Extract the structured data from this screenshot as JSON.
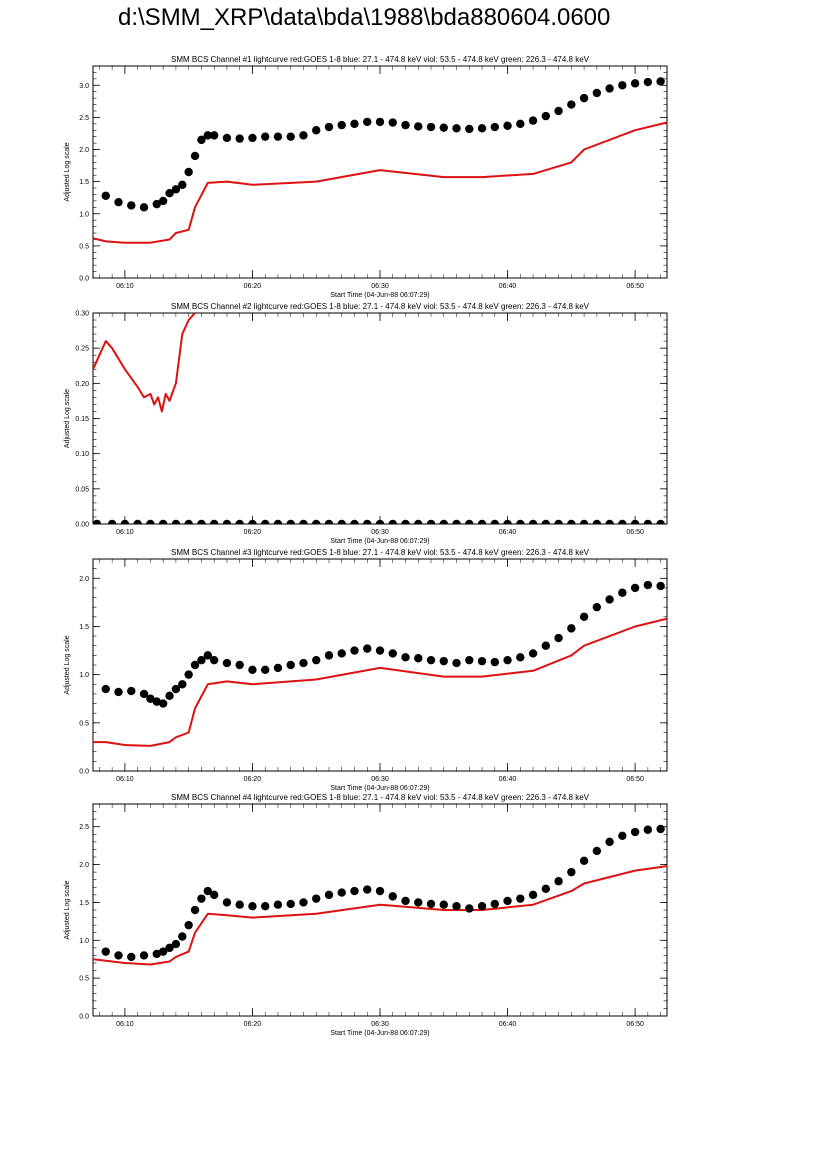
{
  "page_title": "d:\\SMM_XRP\\data\\bda\\1988\\bda880604.0600",
  "colors": {
    "goes": "#dd1111",
    "bcs": "#000000",
    "axes": "#000000",
    "background": "#ffffff"
  },
  "chart_data": [
    {
      "type": "line",
      "title": "SMM BCS Channel #1 lightcurve  red:GOES 1-8  blue: 27.1 - 474.8 keV  viol: 53.5 - 474.8 keV  green: 226.3 - 474.8 keV",
      "ylabel": "Adjusted Log scale",
      "xlabel": "Start Time (04-Jun-88 06:07:29)",
      "xlim": [
        7.5,
        52.5
      ],
      "ylim": [
        0,
        3.3
      ],
      "yticks": [
        0,
        0.5,
        1,
        1.5,
        2,
        2.5,
        3
      ],
      "ytick_labels": [
        "0.0",
        "0.5",
        "1.0",
        "1.5",
        "2.0",
        "2.5",
        "3.0"
      ],
      "xticks": [
        10,
        20,
        30,
        40,
        50
      ],
      "xtick_labels": [
        "06:10",
        "06:20",
        "06:30",
        "06:40",
        "06:50"
      ],
      "series": [
        {
          "name": "GOES 1-8",
          "style": "line",
          "color": "#dd1111",
          "x": [
            7.5,
            8.5,
            10,
            12,
            13.5,
            14,
            15,
            15.5,
            16.5,
            18,
            20,
            25,
            30,
            35,
            38,
            42,
            45,
            46,
            50,
            52.5
          ],
          "y": [
            0.62,
            0.57,
            0.55,
            0.55,
            0.6,
            0.7,
            0.75,
            1.1,
            1.48,
            1.5,
            1.45,
            1.5,
            1.68,
            1.57,
            1.57,
            1.62,
            1.8,
            2.0,
            2.3,
            2.42
          ]
        },
        {
          "name": "BCS Ch1",
          "style": "dots",
          "color": "#000000",
          "x": [
            8.5,
            9.5,
            10.5,
            11.5,
            12.5,
            13,
            13.5,
            14,
            14.5,
            15,
            15.5,
            16,
            16.5,
            17,
            18,
            19,
            20,
            21,
            22,
            23,
            24,
            25,
            26,
            27,
            28,
            29,
            30,
            31,
            32,
            33,
            34,
            35,
            36,
            37,
            38,
            39,
            40,
            41,
            42,
            43,
            44,
            45,
            46,
            47,
            48,
            49,
            50,
            51,
            52
          ],
          "y": [
            1.28,
            1.18,
            1.13,
            1.1,
            1.15,
            1.2,
            1.32,
            1.38,
            1.45,
            1.65,
            1.9,
            2.15,
            2.22,
            2.22,
            2.18,
            2.17,
            2.18,
            2.2,
            2.2,
            2.2,
            2.22,
            2.3,
            2.35,
            2.38,
            2.4,
            2.43,
            2.43,
            2.42,
            2.38,
            2.36,
            2.35,
            2.34,
            2.33,
            2.32,
            2.33,
            2.35,
            2.37,
            2.4,
            2.45,
            2.52,
            2.6,
            2.7,
            2.8,
            2.88,
            2.95,
            3.0,
            3.03,
            3.05,
            3.06
          ]
        }
      ]
    },
    {
      "type": "line",
      "title": "SMM BCS Channel #2 lightcurve  red:GOES 1-8  blue: 27.1 - 474.8 keV  viol: 53.5 - 474.8 keV  green: 226.3 - 474.8 keV",
      "ylabel": "Adjusted Log scale",
      "xlabel": "Start Time (04-Jun-88 06:07:29)",
      "xlim": [
        7.5,
        52.5
      ],
      "ylim": [
        0,
        0.3
      ],
      "yticks": [
        0,
        0.05,
        0.1,
        0.15,
        0.2,
        0.25,
        0.3
      ],
      "ytick_labels": [
        "0.00",
        "0.05",
        "0.10",
        "0.15",
        "0.20",
        "0.25",
        "0.30"
      ],
      "xticks": [
        10,
        20,
        30,
        40,
        50
      ],
      "xtick_labels": [
        "06:10",
        "06:20",
        "06:30",
        "06:40",
        "06:50"
      ],
      "series": [
        {
          "name": "GOES 1-8",
          "style": "line",
          "color": "#dd1111",
          "x": [
            7.5,
            8,
            8.5,
            9,
            10,
            11,
            11.5,
            12,
            12.3,
            12.6,
            12.9,
            13.2,
            13.5,
            14,
            14.5,
            15,
            15.5
          ],
          "y": [
            0.22,
            0.24,
            0.26,
            0.25,
            0.22,
            0.195,
            0.18,
            0.185,
            0.17,
            0.18,
            0.16,
            0.185,
            0.175,
            0.2,
            0.27,
            0.29,
            0.3
          ]
        },
        {
          "name": "BCS Ch2",
          "style": "dots",
          "color": "#000000",
          "x": [
            7.8,
            9,
            10,
            11,
            12,
            13,
            14,
            15,
            16,
            17,
            18,
            19,
            20,
            21,
            22,
            23,
            24,
            25,
            26,
            27,
            28,
            29,
            30,
            31,
            32,
            33,
            34,
            35,
            36,
            37,
            38,
            39,
            40,
            41,
            42,
            43,
            44,
            45,
            46,
            47,
            48,
            49,
            50,
            51,
            52
          ],
          "y": [
            0,
            0,
            0,
            0,
            0,
            0,
            0,
            0,
            0,
            0,
            0,
            0,
            0,
            0,
            0,
            0,
            0,
            0,
            0,
            0,
            0,
            0,
            0,
            0,
            0,
            0,
            0,
            0,
            0,
            0,
            0,
            0,
            0,
            0,
            0,
            0,
            0,
            0,
            0,
            0,
            0,
            0,
            0,
            0,
            0
          ]
        }
      ]
    },
    {
      "type": "line",
      "title": "SMM BCS Channel #3 lightcurve  red:GOES 1-8  blue: 27.1 - 474.8 keV  viol: 53.5 - 474.8 keV  green: 226.3 - 474.8 keV",
      "ylabel": "Adjusted Log scale",
      "xlabel": "Start Time (04-Jun-88 06:07:29)",
      "xlim": [
        7.5,
        52.5
      ],
      "ylim": [
        0,
        2.2
      ],
      "yticks": [
        0,
        0.5,
        1,
        1.5,
        2
      ],
      "ytick_labels": [
        "0.0",
        "0.5",
        "1.0",
        "1.5",
        "2.0"
      ],
      "xticks": [
        10,
        20,
        30,
        40,
        50
      ],
      "xtick_labels": [
        "06:10",
        "06:20",
        "06:30",
        "06:40",
        "06:50"
      ],
      "series": [
        {
          "name": "GOES 1-8",
          "style": "line",
          "color": "#dd1111",
          "x": [
            7.5,
            8.5,
            10,
            12,
            13.5,
            14,
            15,
            15.5,
            16.5,
            18,
            20,
            25,
            30,
            35,
            38,
            42,
            45,
            46,
            50,
            52.5
          ],
          "y": [
            0.3,
            0.3,
            0.27,
            0.26,
            0.3,
            0.35,
            0.4,
            0.65,
            0.9,
            0.93,
            0.9,
            0.95,
            1.07,
            0.98,
            0.98,
            1.04,
            1.2,
            1.3,
            1.5,
            1.58
          ]
        },
        {
          "name": "BCS Ch3",
          "style": "dots",
          "color": "#000000",
          "x": [
            8.5,
            9.5,
            10.5,
            11.5,
            12,
            12.5,
            13,
            13.5,
            14,
            14.5,
            15,
            15.5,
            16,
            16.5,
            17,
            18,
            19,
            20,
            21,
            22,
            23,
            24,
            25,
            26,
            27,
            28,
            29,
            30,
            31,
            32,
            33,
            34,
            35,
            36,
            37,
            38,
            39,
            40,
            41,
            42,
            43,
            44,
            45,
            46,
            47,
            48,
            49,
            50,
            51,
            52
          ],
          "y": [
            0.85,
            0.82,
            0.83,
            0.8,
            0.75,
            0.72,
            0.7,
            0.78,
            0.85,
            0.9,
            1.0,
            1.1,
            1.15,
            1.2,
            1.15,
            1.12,
            1.1,
            1.05,
            1.05,
            1.07,
            1.1,
            1.12,
            1.15,
            1.2,
            1.22,
            1.25,
            1.27,
            1.25,
            1.22,
            1.18,
            1.17,
            1.15,
            1.14,
            1.12,
            1.15,
            1.14,
            1.13,
            1.15,
            1.18,
            1.22,
            1.3,
            1.38,
            1.48,
            1.6,
            1.7,
            1.78,
            1.85,
            1.9,
            1.93,
            1.92
          ]
        }
      ]
    },
    {
      "type": "line",
      "title": "SMM BCS Channel #4 lightcurve  red:GOES 1-8  blue: 27.1 - 474.8 keV  viol: 53.5 - 474.8 keV  green: 226.3 - 474.8 keV",
      "ylabel": "Adjusted Log scale",
      "xlabel": "Start Time (04-Jun-88 06:07:29)",
      "xlim": [
        7.5,
        52.5
      ],
      "ylim": [
        0,
        2.8
      ],
      "yticks": [
        0,
        0.5,
        1,
        1.5,
        2,
        2.5
      ],
      "ytick_labels": [
        "0.0",
        "0.5",
        "1.0",
        "1.5",
        "2.0",
        "2.5"
      ],
      "xticks": [
        10,
        20,
        30,
        40,
        50
      ],
      "xtick_labels": [
        "06:10",
        "06:20",
        "06:30",
        "06:40",
        "06:50"
      ],
      "series": [
        {
          "name": "GOES 1-8",
          "style": "line",
          "color": "#dd1111",
          "x": [
            7.5,
            8.5,
            10,
            12,
            13.5,
            14,
            15,
            15.5,
            16.5,
            18,
            20,
            25,
            30,
            35,
            38,
            42,
            45,
            46,
            50,
            52.5
          ],
          "y": [
            0.75,
            0.73,
            0.7,
            0.68,
            0.72,
            0.78,
            0.85,
            1.1,
            1.35,
            1.33,
            1.3,
            1.35,
            1.47,
            1.4,
            1.4,
            1.47,
            1.65,
            1.75,
            1.92,
            1.98
          ]
        },
        {
          "name": "BCS Ch4",
          "style": "dots",
          "color": "#000000",
          "x": [
            8.5,
            9.5,
            10.5,
            11.5,
            12.5,
            13,
            13.5,
            14,
            14.5,
            15,
            15.5,
            16,
            16.5,
            17,
            18,
            19,
            20,
            21,
            22,
            23,
            24,
            25,
            26,
            27,
            28,
            29,
            30,
            31,
            32,
            33,
            34,
            35,
            36,
            37,
            38,
            39,
            40,
            41,
            42,
            43,
            44,
            45,
            46,
            47,
            48,
            49,
            50,
            51,
            52
          ],
          "y": [
            0.85,
            0.8,
            0.78,
            0.8,
            0.82,
            0.85,
            0.9,
            0.95,
            1.05,
            1.2,
            1.4,
            1.55,
            1.65,
            1.6,
            1.5,
            1.47,
            1.45,
            1.45,
            1.47,
            1.48,
            1.5,
            1.55,
            1.6,
            1.63,
            1.65,
            1.67,
            1.65,
            1.58,
            1.52,
            1.5,
            1.48,
            1.47,
            1.45,
            1.42,
            1.45,
            1.48,
            1.52,
            1.55,
            1.6,
            1.68,
            1.78,
            1.9,
            2.05,
            2.18,
            2.3,
            2.38,
            2.43,
            2.46,
            2.47
          ]
        }
      ]
    }
  ]
}
